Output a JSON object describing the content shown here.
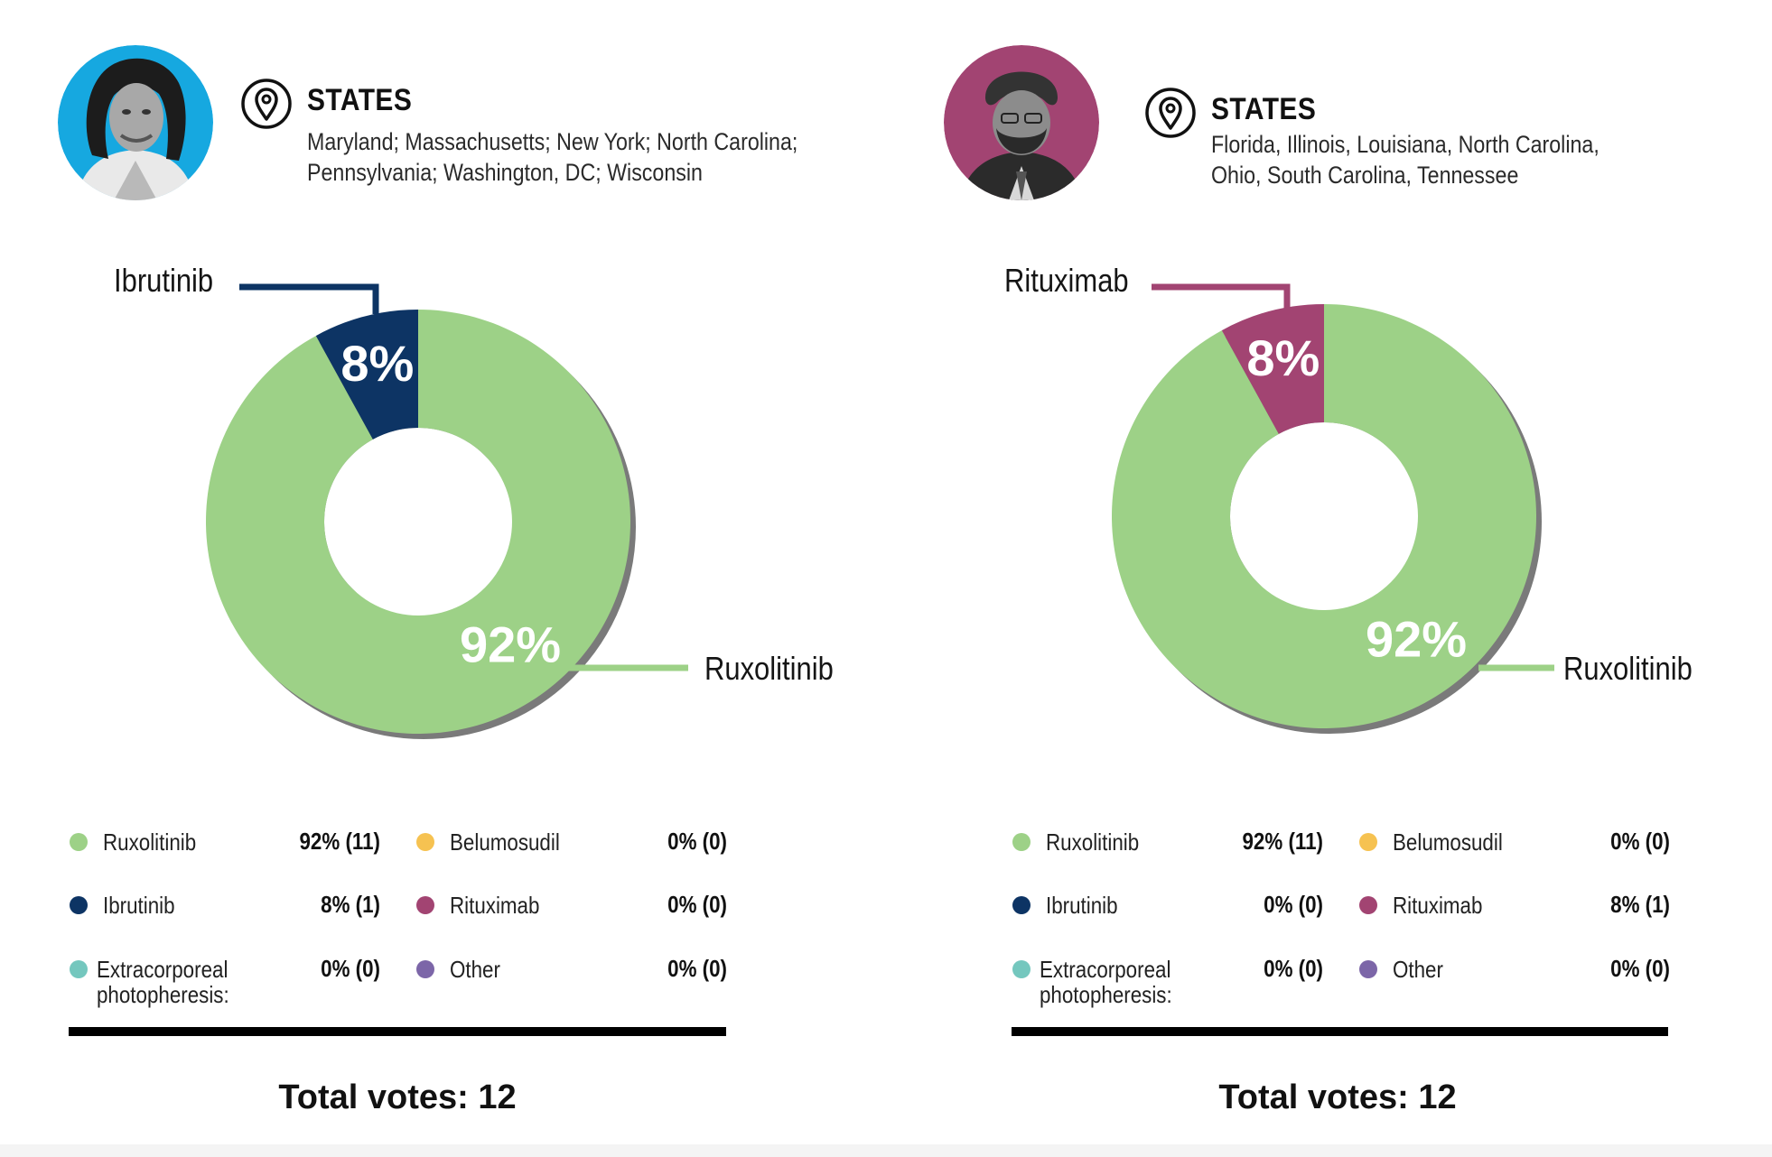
{
  "colors": {
    "ruxolitinib": "#9dd187",
    "ibrutinib": "#0d3464",
    "extracorporeal": "#74c7be",
    "belumosudil": "#f6c251",
    "rituximab": "#a24472",
    "other": "#7c66a8",
    "avatar_left_bg": "#16a8e0",
    "avatar_right_bg": "#a24472",
    "shadow": "#7a7a7a"
  },
  "panels": [
    {
      "states_title": "STATES",
      "states_lines": [
        "Maryland; Massachusetts; New York; North Carolina;",
        "Pennsylvania; Washington, DC; Wisconsin"
      ],
      "callout_small_label": "Ibrutinib",
      "callout_large_label": "Ruxolitinib",
      "small_pct_label": "8%",
      "large_pct_label": "92%",
      "legend": [
        {
          "name": "Ruxolitinib",
          "value": "92% (11)",
          "color": "ruxolitinib"
        },
        {
          "name": "Belumosudil",
          "value": "0% (0)",
          "color": "belumosudil"
        },
        {
          "name": "Ibrutinib",
          "value": "8% (1)",
          "color": "ibrutinib"
        },
        {
          "name": "Rituximab",
          "value": "0% (0)",
          "color": "rituximab"
        },
        {
          "name_lines": [
            "Extracorporeal",
            "photopheresis:"
          ],
          "value": "0% (0)",
          "color": "extracorporeal"
        },
        {
          "name": "Other",
          "value": "0% (0)",
          "color": "other"
        }
      ],
      "total": "Total votes: 12"
    },
    {
      "states_title": "STATES",
      "states_lines": [
        "Florida, Illinois, Louisiana, North Carolina,",
        "Ohio, South Carolina, Tennessee"
      ],
      "callout_small_label": "Rituximab",
      "callout_large_label": "Ruxolitinib",
      "small_pct_label": "8%",
      "large_pct_label": "92%",
      "legend": [
        {
          "name": "Ruxolitinib",
          "value": "92% (11)",
          "color": "ruxolitinib"
        },
        {
          "name": "Belumosudil",
          "value": "0% (0)",
          "color": "belumosudil"
        },
        {
          "name": "Ibrutinib",
          "value": "0% (0)",
          "color": "ibrutinib"
        },
        {
          "name": "Rituximab",
          "value": "8% (1)",
          "color": "rituximab"
        },
        {
          "name_lines": [
            "Extracorporeal",
            "photopheresis:"
          ],
          "value": "0% (0)",
          "color": "extracorporeal"
        },
        {
          "name": "Other",
          "value": "0% (0)",
          "color": "other"
        }
      ],
      "total": "Total votes: 12"
    }
  ],
  "chart_data": [
    {
      "type": "pie",
      "categories": [
        "Ruxolitinib",
        "Ibrutinib",
        "Extracorporeal photopheresis",
        "Belumosudil",
        "Rituximab",
        "Other"
      ],
      "values": [
        92,
        8,
        0,
        0,
        0,
        0
      ],
      "counts": [
        11,
        1,
        0,
        0,
        0,
        0
      ],
      "total_votes": 12,
      "title": "",
      "legend": "bottom"
    },
    {
      "type": "pie",
      "categories": [
        "Ruxolitinib",
        "Ibrutinib",
        "Extracorporeal photopheresis",
        "Belumosudil",
        "Rituximab",
        "Other"
      ],
      "values": [
        92,
        0,
        0,
        0,
        8,
        0
      ],
      "counts": [
        11,
        0,
        0,
        0,
        1,
        0
      ],
      "total_votes": 12,
      "title": "",
      "legend": "bottom"
    }
  ]
}
